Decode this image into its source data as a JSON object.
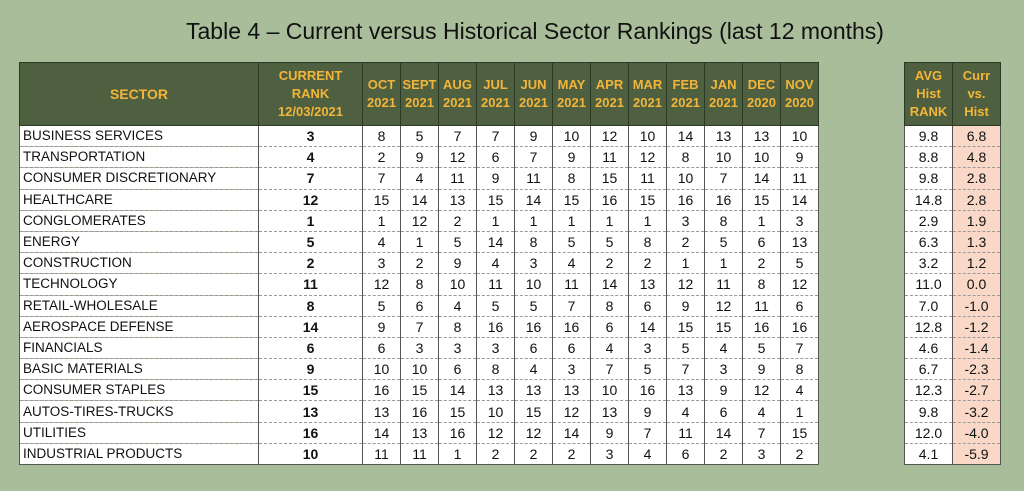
{
  "title": "Table 4 – Current versus Historical Sector Rankings (last 12 months)",
  "headers": {
    "sector": "SECTOR",
    "current": [
      "CURRENT",
      "RANK",
      "12/03/2021"
    ],
    "months": [
      [
        "OCT",
        "2021"
      ],
      [
        "SEPT",
        "2021"
      ],
      [
        "AUG",
        "2021"
      ],
      [
        "JUL",
        "2021"
      ],
      [
        "JUN",
        "2021"
      ],
      [
        "MAY",
        "2021"
      ],
      [
        "APR",
        "2021"
      ],
      [
        "MAR",
        "2021"
      ],
      [
        "FEB",
        "2021"
      ],
      [
        "JAN",
        "2021"
      ],
      [
        "DEC",
        "2020"
      ],
      [
        "NOV",
        "2020"
      ]
    ],
    "avg": [
      "AVG",
      "Hist",
      "RANK"
    ],
    "diff": [
      "Curr",
      "vs.",
      "Hist"
    ]
  },
  "rows": [
    {
      "sector": "BUSINESS SERVICES",
      "rank": "3",
      "months": [
        "8",
        "5",
        "7",
        "7",
        "9",
        "10",
        "12",
        "10",
        "14",
        "13",
        "13",
        "10"
      ],
      "avg": "9.8",
      "diff": "6.8"
    },
    {
      "sector": "TRANSPORTATION",
      "rank": "4",
      "months": [
        "2",
        "9",
        "12",
        "6",
        "7",
        "9",
        "11",
        "12",
        "8",
        "10",
        "10",
        "9"
      ],
      "avg": "8.8",
      "diff": "4.8"
    },
    {
      "sector": "CONSUMER DISCRETIONARY",
      "rank": "7",
      "months": [
        "7",
        "4",
        "11",
        "9",
        "11",
        "8",
        "15",
        "11",
        "10",
        "7",
        "14",
        "11"
      ],
      "avg": "9.8",
      "diff": "2.8"
    },
    {
      "sector": "HEALTHCARE",
      "rank": "12",
      "months": [
        "15",
        "14",
        "13",
        "15",
        "14",
        "15",
        "16",
        "15",
        "16",
        "16",
        "15",
        "14"
      ],
      "avg": "14.8",
      "diff": "2.8"
    },
    {
      "sector": "CONGLOMERATES",
      "rank": "1",
      "months": [
        "1",
        "12",
        "2",
        "1",
        "1",
        "1",
        "1",
        "1",
        "3",
        "8",
        "1",
        "3"
      ],
      "avg": "2.9",
      "diff": "1.9"
    },
    {
      "sector": "ENERGY",
      "rank": "5",
      "months": [
        "4",
        "1",
        "5",
        "14",
        "8",
        "5",
        "5",
        "8",
        "2",
        "5",
        "6",
        "13"
      ],
      "avg": "6.3",
      "diff": "1.3"
    },
    {
      "sector": "CONSTRUCTION",
      "rank": "2",
      "months": [
        "3",
        "2",
        "9",
        "4",
        "3",
        "4",
        "2",
        "2",
        "1",
        "1",
        "2",
        "5"
      ],
      "avg": "3.2",
      "diff": "1.2"
    },
    {
      "sector": "TECHNOLOGY",
      "rank": "11",
      "months": [
        "12",
        "8",
        "10",
        "11",
        "10",
        "11",
        "14",
        "13",
        "12",
        "11",
        "8",
        "12"
      ],
      "avg": "11.0",
      "diff": "0.0"
    },
    {
      "sector": "RETAIL-WHOLESALE",
      "rank": "8",
      "months": [
        "5",
        "6",
        "4",
        "5",
        "5",
        "7",
        "8",
        "6",
        "9",
        "12",
        "11",
        "6"
      ],
      "avg": "7.0",
      "diff": "-1.0"
    },
    {
      "sector": "AEROSPACE DEFENSE",
      "rank": "14",
      "months": [
        "9",
        "7",
        "8",
        "16",
        "16",
        "16",
        "6",
        "14",
        "15",
        "15",
        "16",
        "16"
      ],
      "avg": "12.8",
      "diff": "-1.2"
    },
    {
      "sector": "FINANCIALS",
      "rank": "6",
      "months": [
        "6",
        "3",
        "3",
        "3",
        "6",
        "6",
        "4",
        "3",
        "5",
        "4",
        "5",
        "7"
      ],
      "avg": "4.6",
      "diff": "-1.4"
    },
    {
      "sector": "BASIC MATERIALS",
      "rank": "9",
      "months": [
        "10",
        "10",
        "6",
        "8",
        "4",
        "3",
        "7",
        "5",
        "7",
        "3",
        "9",
        "8"
      ],
      "avg": "6.7",
      "diff": "-2.3"
    },
    {
      "sector": "CONSUMER STAPLES",
      "rank": "15",
      "months": [
        "16",
        "15",
        "14",
        "13",
        "13",
        "13",
        "10",
        "16",
        "13",
        "9",
        "12",
        "4"
      ],
      "avg": "12.3",
      "diff": "-2.7"
    },
    {
      "sector": "AUTOS-TIRES-TRUCKS",
      "rank": "13",
      "months": [
        "13",
        "16",
        "15",
        "10",
        "15",
        "12",
        "13",
        "9",
        "4",
        "6",
        "4",
        "1"
      ],
      "avg": "9.8",
      "diff": "-3.2"
    },
    {
      "sector": "UTILITIES",
      "rank": "16",
      "months": [
        "14",
        "13",
        "16",
        "12",
        "12",
        "14",
        "9",
        "7",
        "11",
        "14",
        "7",
        "15"
      ],
      "avg": "12.0",
      "diff": "-4.0"
    },
    {
      "sector": "INDUSTRIAL PRODUCTS",
      "rank": "10",
      "months": [
        "11",
        "11",
        "1",
        "2",
        "2",
        "2",
        "3",
        "4",
        "6",
        "2",
        "3",
        "2"
      ],
      "avg": "4.1",
      "diff": "-5.9"
    }
  ]
}
